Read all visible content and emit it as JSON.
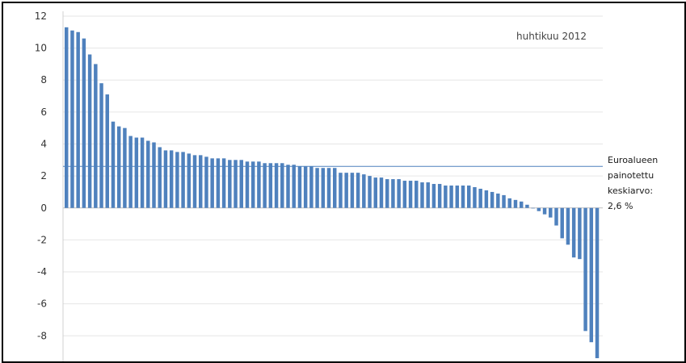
{
  "chart_data": {
    "type": "bar",
    "period_label": "huhtikuu 2012",
    "ylim": [
      -9.6,
      12.3
    ],
    "y_ticks": [
      12,
      10,
      8,
      6,
      4,
      2,
      0,
      -2,
      -4,
      -6,
      -8
    ],
    "grid": true,
    "bar_color": "#4f81bd",
    "reference_line": {
      "value": 2.6,
      "color": "#4f81bd",
      "label_lines": [
        "Euroalueen",
        "painotettu",
        "keskiarvo:",
        "2,6 %"
      ]
    },
    "values": [
      11.3,
      11.1,
      11.0,
      10.6,
      9.6,
      9.0,
      7.8,
      7.1,
      5.4,
      5.1,
      5.0,
      4.5,
      4.4,
      4.4,
      4.2,
      4.1,
      3.8,
      3.6,
      3.6,
      3.5,
      3.5,
      3.4,
      3.3,
      3.3,
      3.2,
      3.1,
      3.1,
      3.1,
      3.0,
      3.0,
      3.0,
      2.9,
      2.9,
      2.9,
      2.8,
      2.8,
      2.8,
      2.8,
      2.7,
      2.7,
      2.6,
      2.6,
      2.6,
      2.5,
      2.5,
      2.5,
      2.5,
      2.2,
      2.2,
      2.2,
      2.2,
      2.1,
      2.0,
      1.9,
      1.9,
      1.8,
      1.8,
      1.8,
      1.7,
      1.7,
      1.7,
      1.6,
      1.6,
      1.5,
      1.5,
      1.4,
      1.4,
      1.4,
      1.4,
      1.4,
      1.3,
      1.2,
      1.1,
      1.0,
      0.9,
      0.8,
      0.6,
      0.5,
      0.4,
      0.2,
      0.0,
      -0.2,
      -0.4,
      -0.6,
      -1.1,
      -1.9,
      -2.3,
      -3.1,
      -3.2,
      -7.7,
      -8.4,
      -9.4
    ]
  }
}
